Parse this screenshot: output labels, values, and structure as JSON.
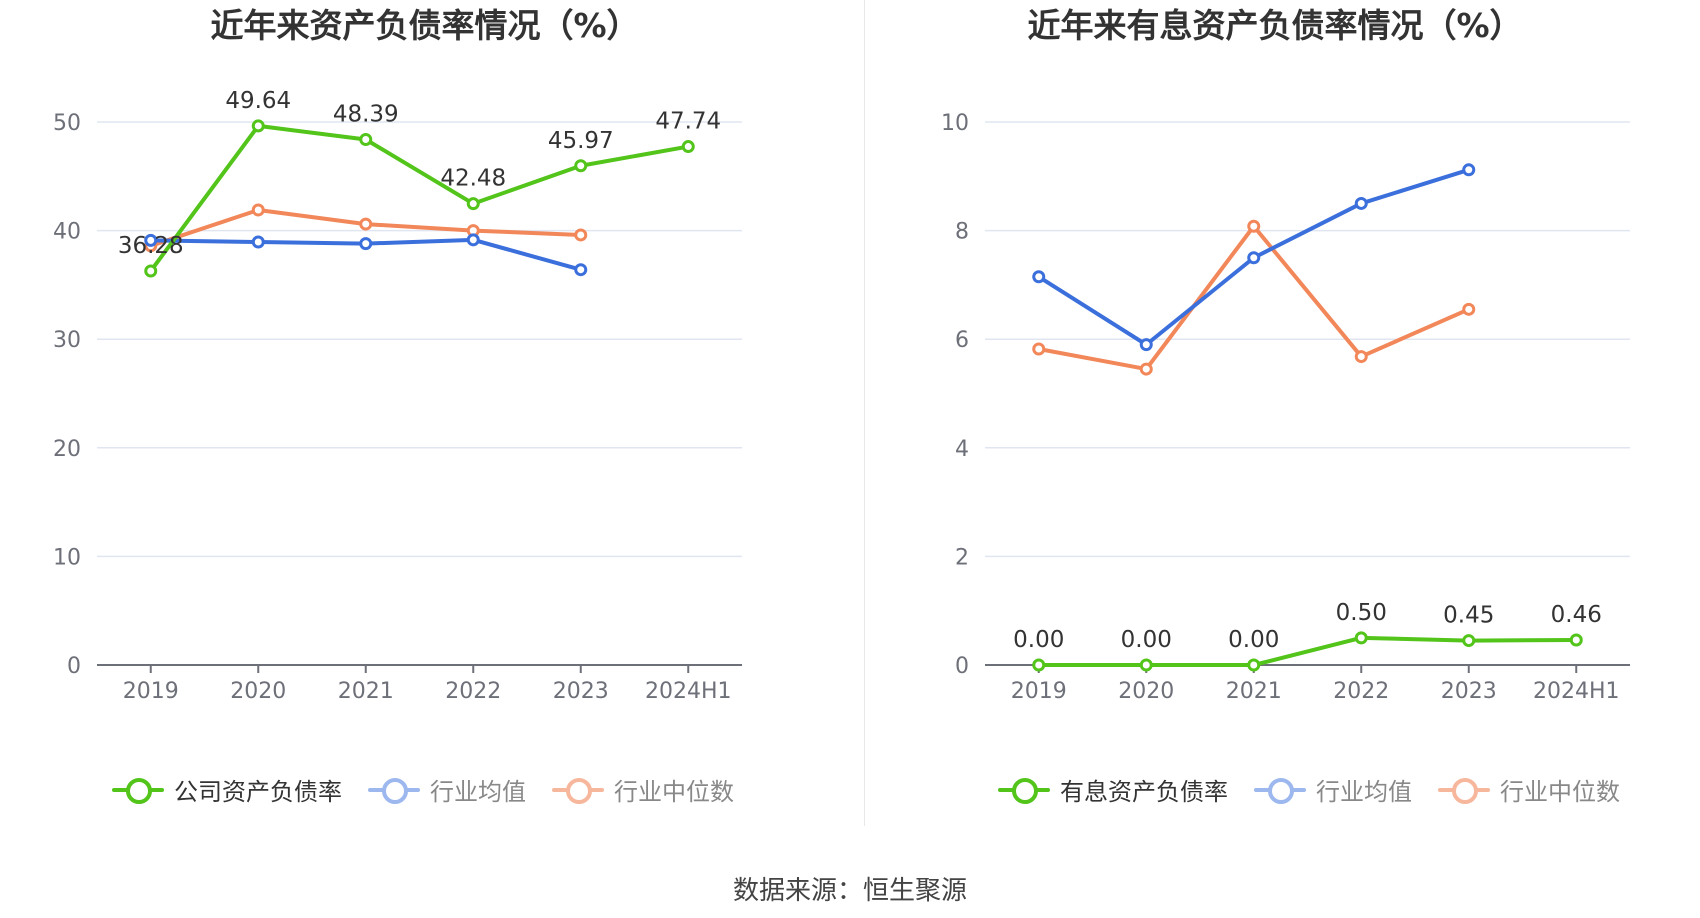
{
  "source_label": "数据来源：恒生聚源",
  "chart_data": [
    {
      "type": "line",
      "title": "近年来资产负债率情况（%）",
      "categories": [
        "2019",
        "2020",
        "2021",
        "2022",
        "2023",
        "2024H1"
      ],
      "ylim": [
        0,
        50
      ],
      "yticks": [
        "0",
        "10",
        "20",
        "30",
        "40",
        "50"
      ],
      "grid": true,
      "legend_position": "bottom",
      "series": [
        {
          "name": "公司资产负债率",
          "color": "#52c41a",
          "values": [
            36.28,
            49.64,
            48.39,
            42.48,
            45.97,
            47.74
          ],
          "labels": [
            "36.28",
            "49.64",
            "48.39",
            "42.48",
            "45.97",
            "47.74"
          ]
        },
        {
          "name": "行业均值",
          "color": "#3a6fdc",
          "values": [
            39.1,
            38.95,
            38.8,
            39.15,
            36.4,
            null
          ]
        },
        {
          "name": "行业中位数",
          "color": "#f2875a",
          "values": [
            38.6,
            41.9,
            40.6,
            40.0,
            39.6,
            null
          ]
        }
      ]
    },
    {
      "type": "line",
      "title": "近年来有息资产负债率情况（%）",
      "categories": [
        "2019",
        "2020",
        "2021",
        "2022",
        "2023",
        "2024H1"
      ],
      "ylim": [
        0,
        10
      ],
      "yticks": [
        "0",
        "2",
        "4",
        "6",
        "8",
        "10"
      ],
      "grid": true,
      "legend_position": "bottom",
      "series": [
        {
          "name": "有息资产负债率",
          "color": "#52c41a",
          "values": [
            0.0,
            0.0,
            0.0,
            0.5,
            0.45,
            0.46
          ],
          "labels": [
            "0.00",
            "0.00",
            "0.00",
            "0.50",
            "0.45",
            "0.46"
          ]
        },
        {
          "name": "行业均值",
          "color": "#3a6fdc",
          "values": [
            7.15,
            5.9,
            7.5,
            8.5,
            9.12,
            null
          ]
        },
        {
          "name": "行业中位数",
          "color": "#f2875a",
          "values": [
            5.82,
            5.45,
            8.08,
            5.68,
            6.55,
            null
          ]
        }
      ]
    }
  ]
}
